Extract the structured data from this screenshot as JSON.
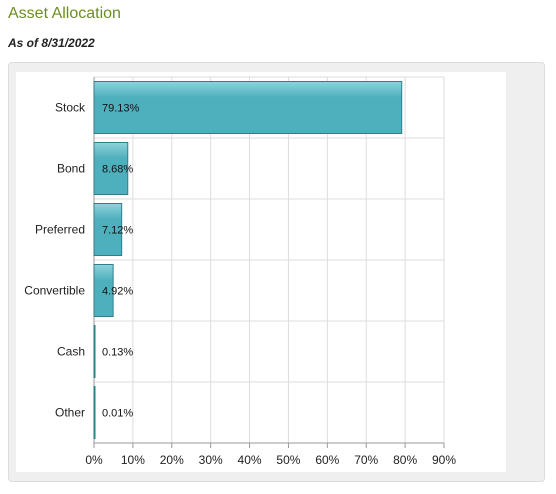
{
  "header": {
    "title": "Asset Allocation",
    "as_of": "As of 8/31/2022"
  },
  "colors": {
    "bar_fill": "#4fb0bd",
    "bar_fill_light": "#8fd3dc",
    "bar_stroke": "#2f7f8a",
    "grid": "#dddddd",
    "title": "#6b8f1f"
  },
  "chart_data": {
    "type": "bar",
    "orientation": "horizontal",
    "categories": [
      "Stock",
      "Bond",
      "Preferred",
      "Convertible",
      "Cash",
      "Other"
    ],
    "values": [
      79.13,
      8.68,
      7.12,
      4.92,
      0.13,
      0.01
    ],
    "data_labels": [
      "79.13%",
      "8.68%",
      "7.12%",
      "4.92%",
      "0.13%",
      "0.01%"
    ],
    "xlim": [
      0,
      90
    ],
    "xticks": [
      0,
      10,
      20,
      30,
      40,
      50,
      60,
      70,
      80,
      90
    ],
    "xtick_labels": [
      "0%",
      "10%",
      "20%",
      "30%",
      "40%",
      "50%",
      "60%",
      "70%",
      "80%",
      "90%"
    ],
    "grid": true,
    "legend": false
  }
}
